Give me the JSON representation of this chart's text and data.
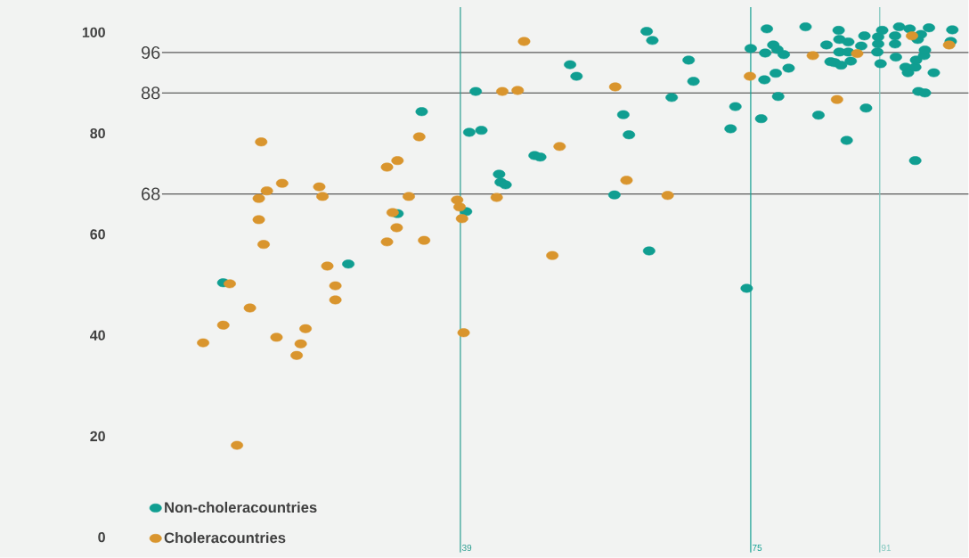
{
  "chart_data": {
    "type": "scatter",
    "xlim": [
      2,
      102
    ],
    "ylim": [
      -3,
      105
    ],
    "yticks": [
      0,
      20,
      40,
      60,
      80,
      100
    ],
    "tick_labels": "y",
    "legend": "bottom left",
    "marker": "circle",
    "ref_lines": [
      {
        "axis": "y",
        "value": 96,
        "label": "96",
        "color": "#5a5a5a"
      },
      {
        "axis": "y",
        "value": 88,
        "label": "88",
        "color": "#3a3a3a"
      },
      {
        "axis": "y",
        "value": 68,
        "label": "68",
        "color": "#5a5a5a"
      },
      {
        "axis": "x",
        "value": 39,
        "label": "39",
        "color": "#2a9d90"
      },
      {
        "axis": "x",
        "value": 75,
        "label": "75",
        "color": "#12a092"
      },
      {
        "axis": "x",
        "value": 91,
        "label": "91",
        "color": "#7cc5bc"
      }
    ],
    "series": [
      {
        "name": "Non-choleracountries",
        "color": "#109e91",
        "x": [
          9.6,
          25.1,
          31.2,
          34.2,
          39.7,
          40.1,
          40.9,
          41.6,
          43.8,
          44.0,
          44.6,
          48.2,
          48.9,
          52.6,
          53.4,
          58.1,
          59.2,
          59.9,
          62.4,
          62.1,
          62.8,
          65.2,
          67.3,
          67.9,
          72.5,
          73.1,
          74.5,
          75.0,
          76.3,
          76.7,
          76.8,
          77.0,
          77.8,
          78.3,
          78.4,
          78.1,
          79.1,
          79.7,
          81.8,
          83.4,
          84.4,
          84.9,
          85.4,
          85.9,
          86.0,
          86.0,
          86.2,
          86.9,
          87.1,
          87.1,
          87.4,
          88.7,
          89.1,
          89.3,
          90.7,
          90.8,
          90.8,
          91.1,
          91.3,
          92.9,
          92.9,
          93.0,
          93.4,
          94.2,
          94.5,
          94.7,
          95.4,
          95.4,
          95.5,
          95.7,
          95.8,
          96.1,
          96.5,
          96.6,
          96.6,
          97.1,
          97.7,
          99.8,
          100.0
        ],
        "values": [
          50.4,
          54.1,
          64.1,
          84.3,
          64.5,
          80.2,
          88.3,
          80.6,
          71.9,
          70.3,
          69.8,
          75.6,
          75.3,
          93.6,
          91.3,
          67.8,
          83.7,
          79.7,
          56.7,
          100.2,
          98.4,
          87.1,
          94.5,
          90.3,
          80.9,
          85.3,
          49.3,
          96.8,
          82.9,
          90.6,
          95.9,
          100.7,
          97.5,
          96.6,
          87.3,
          91.9,
          95.6,
          92.9,
          101.1,
          83.6,
          97.5,
          94.2,
          94.0,
          100.4,
          98.6,
          96.1,
          93.5,
          78.6,
          98.1,
          96.1,
          94.3,
          97.3,
          99.3,
          85.0,
          96.1,
          97.7,
          99.1,
          93.8,
          100.4,
          99.3,
          97.7,
          95.1,
          101.1,
          93.1,
          92.0,
          100.7,
          93.1,
          74.6,
          94.5,
          98.6,
          88.3,
          99.6,
          95.4,
          96.5,
          88.0,
          100.9,
          92.0,
          98.2,
          100.5
        ]
      },
      {
        "name": "Choleracountries",
        "color": "#d9952e",
        "x": [
          7.1,
          9.6,
          10.4,
          11.3,
          12.9,
          14.0,
          14.0,
          14.3,
          14.6,
          15.0,
          16.2,
          16.9,
          18.7,
          19.2,
          19.8,
          21.5,
          21.9,
          22.5,
          23.5,
          23.5,
          29.9,
          29.9,
          30.6,
          31.1,
          31.2,
          32.6,
          33.9,
          34.5,
          38.6,
          38.9,
          39.2,
          39.4,
          43.5,
          44.2,
          46.1,
          46.9,
          50.4,
          51.3,
          58.2,
          59.6,
          64.7,
          74.9,
          82.7,
          85.7,
          88.2,
          95.0,
          99.6
        ],
        "values": [
          38.5,
          42.0,
          50.2,
          18.2,
          45.4,
          67.1,
          62.9,
          78.3,
          58.0,
          68.6,
          39.6,
          70.1,
          36.0,
          38.3,
          41.3,
          69.4,
          67.5,
          53.7,
          49.8,
          47.0,
          58.5,
          73.3,
          64.3,
          61.3,
          74.6,
          67.5,
          79.3,
          58.8,
          66.8,
          65.4,
          63.1,
          40.5,
          67.3,
          88.3,
          88.5,
          98.2,
          55.8,
          77.4,
          89.2,
          70.7,
          67.7,
          91.3,
          95.4,
          86.7,
          95.8,
          99.3,
          97.5
        ]
      }
    ]
  }
}
